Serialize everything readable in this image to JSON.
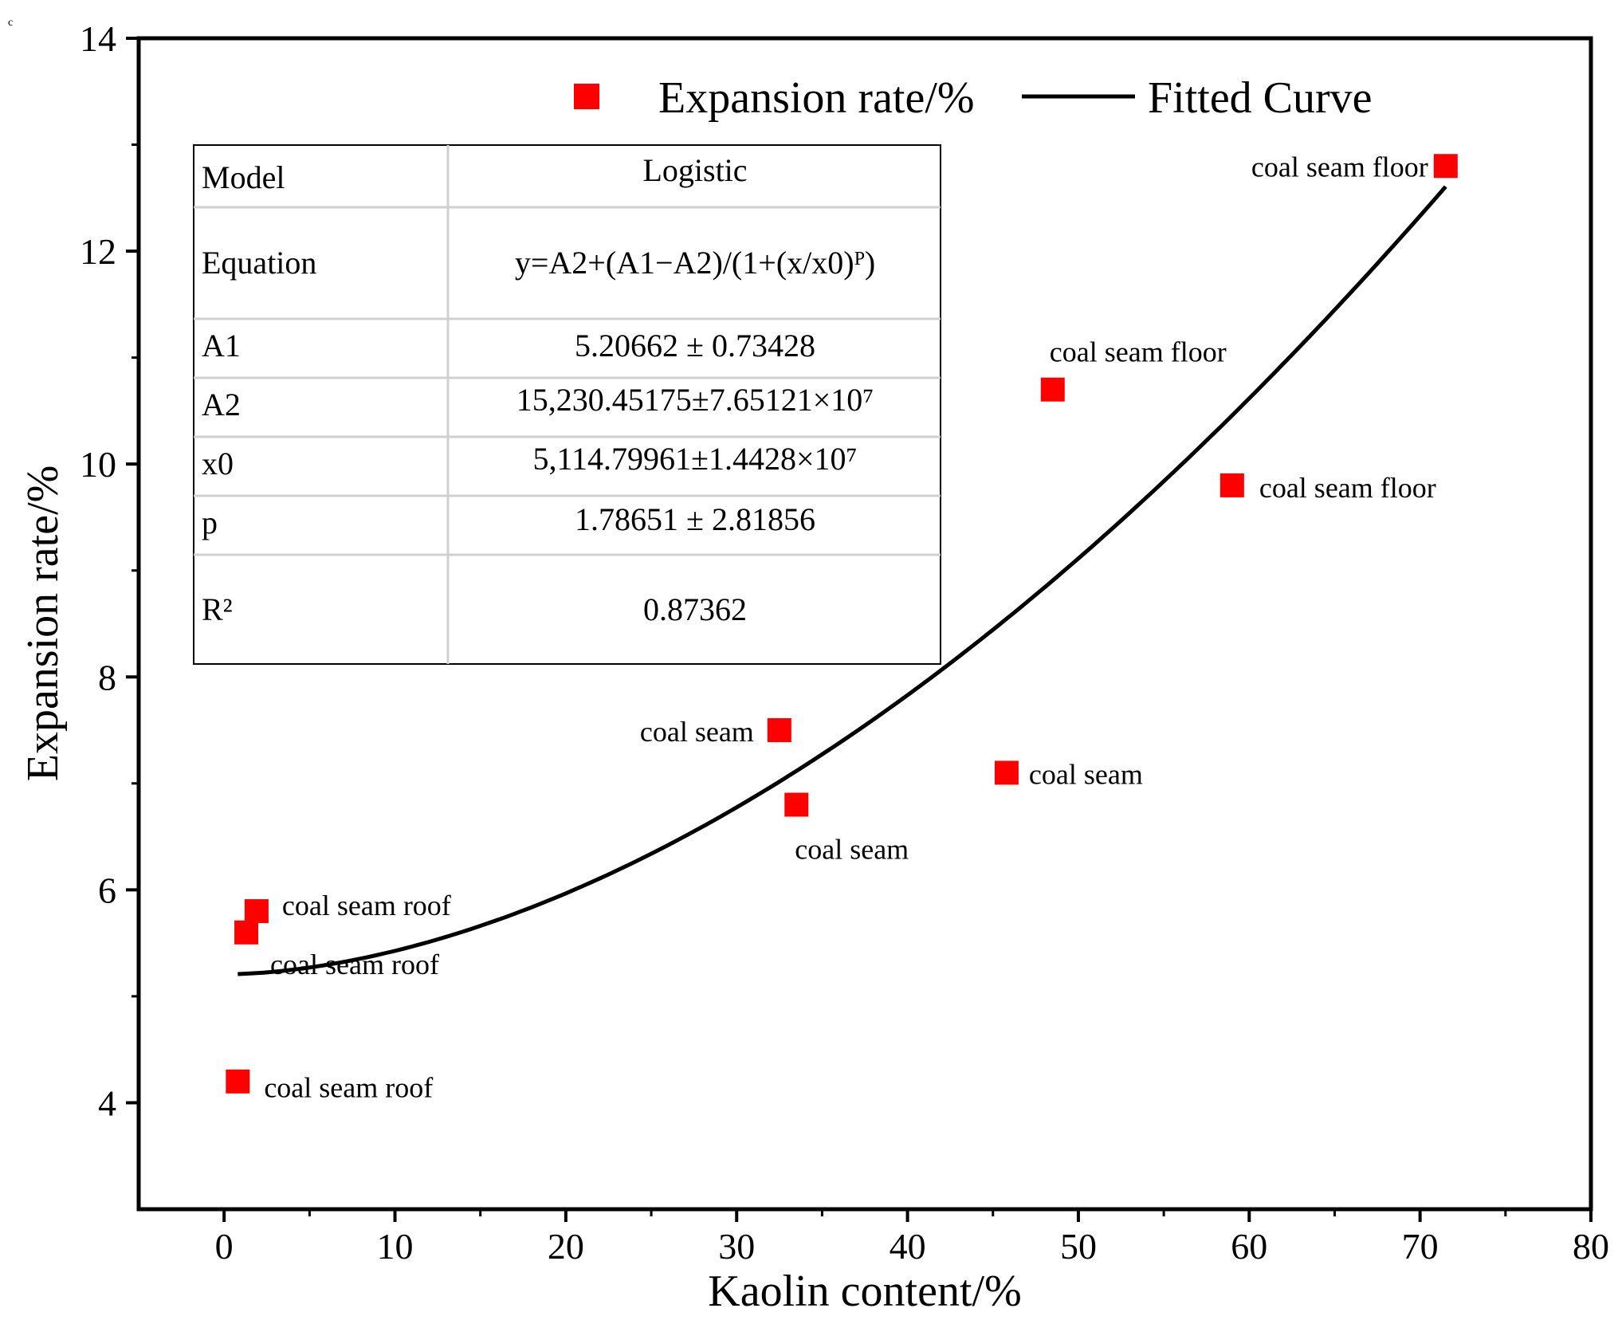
{
  "corner_mark": "c",
  "chart_data": {
    "type": "scatter",
    "xlabel": "Kaolin content/%",
    "ylabel": "Expansion rate/%",
    "xlim": [
      -5,
      80
    ],
    "ylim": [
      3,
      14
    ],
    "x_ticks": [
      0,
      10,
      20,
      30,
      40,
      50,
      60,
      70,
      80
    ],
    "y_ticks": [
      4,
      6,
      8,
      10,
      12,
      14
    ],
    "x_tick_labels": [
      "0",
      "10",
      "20",
      "30",
      "40",
      "50",
      "60",
      "70",
      "80"
    ],
    "y_tick_labels": [
      "4",
      "6",
      "8",
      "10",
      "12",
      "14"
    ],
    "legend": {
      "position": "top",
      "entries": [
        {
          "label": "Expansion rate/%",
          "marker": "square"
        },
        {
          "label": "Fitted Curve",
          "marker": "line"
        }
      ]
    },
    "series": [
      {
        "name": "Expansion rate/%",
        "type": "scatter",
        "color": "#ff0000",
        "points": [
          {
            "x": 0.8,
            "y": 4.2,
            "label": "coal seam roof"
          },
          {
            "x": 1.3,
            "y": 5.6,
            "label": "coal seam roof"
          },
          {
            "x": 1.9,
            "y": 5.8,
            "label": "coal seam roof"
          },
          {
            "x": 32.5,
            "y": 7.5,
            "label": "coal seam"
          },
          {
            "x": 33.5,
            "y": 6.8,
            "label": "coal seam"
          },
          {
            "x": 45.8,
            "y": 7.1,
            "label": "coal seam"
          },
          {
            "x": 48.5,
            "y": 10.7,
            "label": "coal seam floor"
          },
          {
            "x": 59.0,
            "y": 9.8,
            "label": "coal seam floor"
          },
          {
            "x": 71.5,
            "y": 12.8,
            "label": "coal seam floor"
          }
        ]
      },
      {
        "name": "Fitted Curve",
        "type": "line",
        "color": "#000000",
        "model": {
          "A1": 5.20662,
          "A2": 15230.45175,
          "x0": 5114.79961,
          "p": 1.78651
        },
        "x_range": [
          0.8,
          71.5
        ]
      }
    ],
    "fit_table": {
      "rows": [
        {
          "key": "Model",
          "value": "Logistic"
        },
        {
          "key": "Equation",
          "value": "y=A2+(A1−A2)/(1+(x/x0)ᴾ)"
        },
        {
          "key": "A1",
          "value": "5.20662 ± 0.73428"
        },
        {
          "key": "A2",
          "value": "15,230.45175±7.65121×10⁷"
        },
        {
          "key": "x0",
          "value": "5,114.79961±1.4428×10⁷"
        },
        {
          "key": "p",
          "value": "1.78651 ± 2.81856"
        },
        {
          "key": "R²",
          "value": "0.87362"
        }
      ]
    }
  }
}
